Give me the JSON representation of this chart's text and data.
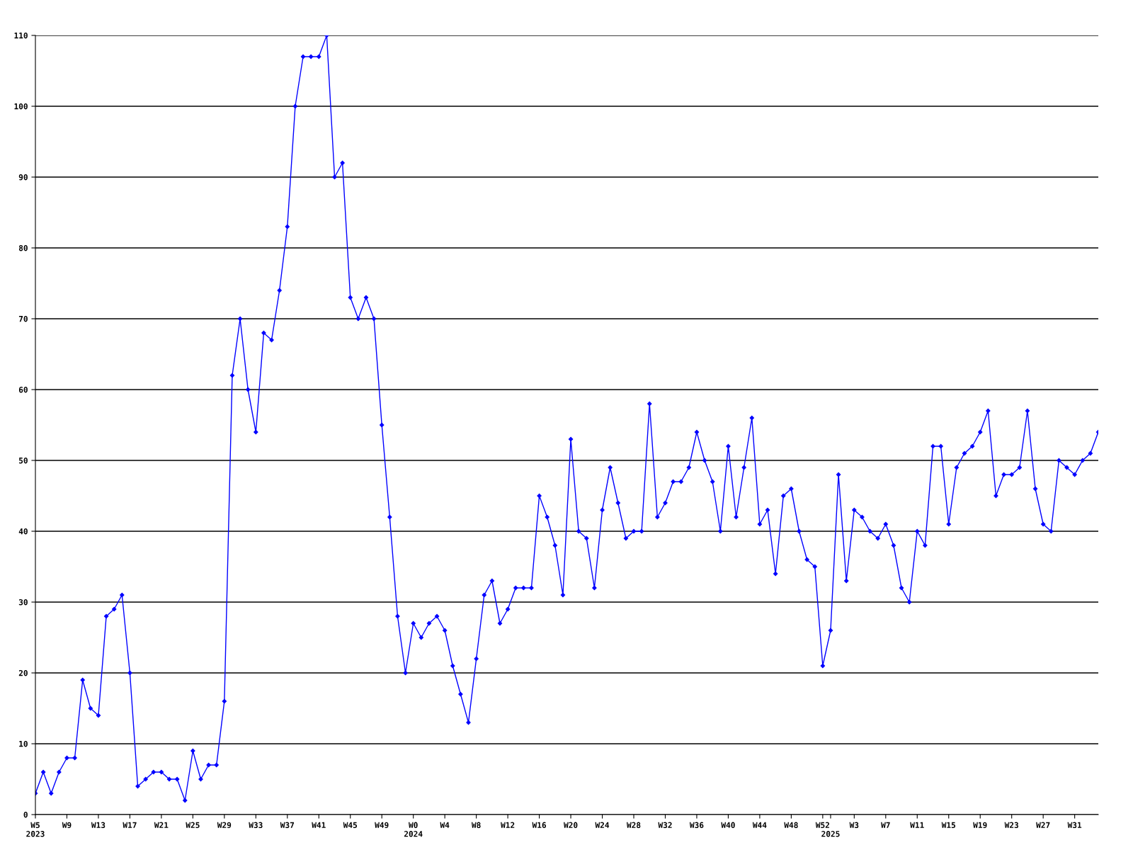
{
  "chart_data": {
    "type": "line",
    "categories": [
      "W5\n2023",
      null,
      null,
      null,
      "W9",
      null,
      null,
      null,
      "W13",
      null,
      null,
      null,
      "W17",
      null,
      null,
      null,
      "W21",
      null,
      null,
      null,
      "W25",
      null,
      null,
      null,
      "W29",
      null,
      null,
      null,
      "W33",
      null,
      null,
      null,
      "W37",
      null,
      null,
      null,
      "W41",
      null,
      null,
      null,
      "W45",
      null,
      null,
      null,
      "W49",
      null,
      null,
      null,
      "W0\n2024",
      null,
      null,
      null,
      "W4",
      null,
      null,
      null,
      "W8",
      null,
      null,
      null,
      "W12",
      null,
      null,
      null,
      "W16",
      null,
      null,
      null,
      "W20",
      null,
      null,
      null,
      "W24",
      null,
      null,
      null,
      "W28",
      null,
      null,
      null,
      "W32",
      null,
      null,
      null,
      "W36",
      null,
      null,
      null,
      "W40",
      null,
      null,
      null,
      "W44",
      null,
      null,
      null,
      "W48",
      null,
      null,
      null,
      "W52",
      "\n2025",
      null,
      null,
      "W3",
      null,
      null,
      null,
      "W7",
      null,
      null,
      null,
      "W11",
      null,
      null,
      null,
      "W15",
      null,
      null,
      null,
      "W19",
      null,
      null,
      null,
      "W23",
      null,
      null,
      null,
      "W27",
      null,
      null,
      null,
      "W31",
      null,
      null,
      null
    ],
    "series": [
      {
        "color": "#0000ff",
        "values": [
          3,
          6,
          3,
          6,
          8,
          8,
          19,
          15,
          14,
          28,
          29,
          31,
          20,
          4,
          5,
          6,
          6,
          5,
          5,
          2,
          9,
          5,
          7,
          7,
          16,
          62,
          70,
          60,
          54,
          68,
          67,
          74,
          83,
          100,
          107,
          107,
          107,
          110,
          90,
          92,
          73,
          70,
          73,
          70,
          55,
          42,
          28,
          20,
          27,
          25,
          27,
          28,
          26,
          21,
          17,
          13,
          22,
          31,
          33,
          27,
          29,
          32,
          32,
          32,
          45,
          42,
          38,
          31,
          53,
          40,
          39,
          32,
          43,
          49,
          44,
          39,
          40,
          40,
          58,
          42,
          44,
          47,
          47,
          49,
          54,
          50,
          47,
          40,
          52,
          42,
          49,
          56,
          41,
          43,
          34,
          45,
          46,
          40,
          36,
          35,
          21,
          26,
          48,
          33,
          43,
          42,
          40,
          39,
          41,
          38,
          32,
          30,
          40,
          38,
          52,
          52,
          41,
          49,
          51,
          52,
          54,
          57,
          45,
          48,
          48,
          49,
          57,
          46,
          41,
          40,
          50,
          49,
          48,
          50,
          51,
          54
        ]
      }
    ],
    "ylim": [
      0,
      110
    ],
    "yticks": [
      0,
      10,
      20,
      30,
      40,
      50,
      60,
      70,
      80,
      90,
      100,
      110
    ],
    "grid": "y",
    "marker": "diamond",
    "line_style": "solid"
  }
}
